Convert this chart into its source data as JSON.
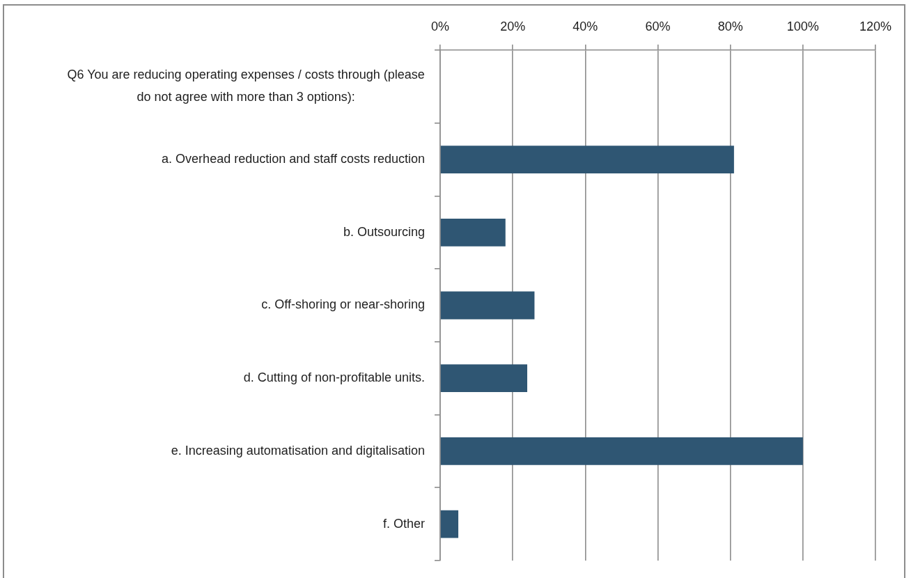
{
  "chart_data": {
    "type": "bar",
    "orientation": "horizontal",
    "title": "Q6 You are reducing operating expenses / costs through (please do not agree with more than 3 options):",
    "categories": [
      "a. Overhead reduction and staff costs reduction",
      "b. Outsourcing",
      "c. Off-shoring or near-shoring",
      "d. Cutting of non-profitable units.",
      "e. Increasing automatisation and digitalisation",
      "f. Other"
    ],
    "values": [
      81,
      18,
      26,
      24,
      100,
      5
    ],
    "color": "#2f5673",
    "xlim": [
      0,
      120
    ],
    "xticks": [
      {
        "value": 0,
        "label": "0%"
      },
      {
        "value": 20,
        "label": "20%"
      },
      {
        "value": 40,
        "label": "40%"
      },
      {
        "value": 60,
        "label": "60%"
      },
      {
        "value": 80,
        "label": "80%"
      },
      {
        "value": 100,
        "label": "100%"
      },
      {
        "value": 120,
        "label": "120%"
      }
    ],
    "grid": "x"
  }
}
